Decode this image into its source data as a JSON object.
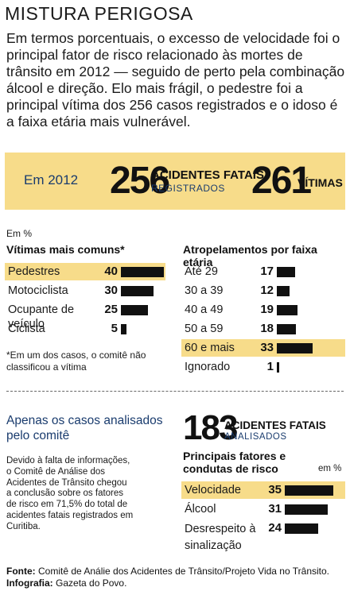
{
  "title": "MISTURA PERIGOSA",
  "intro": "Em termos porcentuais, o excesso de velocidade foi o principal fator de risco relacionado às mortes de trânsito em 2012 — seguido de perto pela combinação álcool e direção. Elo mais frágil, o pedestre foi a principal vítima dos 256 casos registrados e o idoso é a faixa etária mais vulnerável.",
  "highlight": {
    "year": "Em 2012",
    "fatal_count": "256",
    "fatal_label": "ACIDENTES FATAIS",
    "fatal_sub": "REGISTRADOS",
    "victims_count": "261",
    "victims_label": "VÍTIMAS",
    "background": "#f7dc8a"
  },
  "unit_note": "Em %",
  "note": "*Em um dos casos, o comitê não classificou a vítima",
  "analyzed": {
    "title": "Apenas os casos analisados pelo comitê",
    "body": "Devido à falta de informações, o Comitê de Análise dos Acidentes de Trânsito chegou a conclusão sobre os fatores de risco em 71,5% do total de acidentes fatais registrados em Curitiba.",
    "count": "183",
    "count_label": "ACIDENTES FATAIS",
    "count_sub": "ANALISADOS",
    "unit": "em %"
  },
  "footer": {
    "source_label": "Fonte:",
    "source": "Comitê de Análie dos Acidentes de Trânsito/Projeto Vida no Trânsito.",
    "credit_label": "Infografia:",
    "credit": "Gazeta do Povo."
  },
  "chart_data": [
    {
      "type": "bar",
      "title": "Vítimas mais comuns*",
      "categories": [
        "Pedestres",
        "Motociclista",
        "Ocupante de veículo",
        "Ciclista"
      ],
      "values": [
        40,
        30,
        25,
        5
      ],
      "highlight": [
        "Pedestres"
      ],
      "bar_color": "#111111",
      "highlight_color": "#f7dc8a"
    },
    {
      "type": "bar",
      "title": "Atropelamentos por faixa etária",
      "categories": [
        "Até 29",
        "30 a 39",
        "40 a 49",
        "50 a 59",
        "60 e mais",
        "Ignorado"
      ],
      "values": [
        17,
        12,
        19,
        18,
        33,
        1
      ],
      "highlight": [
        "60 e mais"
      ],
      "bar_color": "#111111",
      "highlight_color": "#f7dc8a"
    },
    {
      "type": "bar",
      "title": "Principais fatores e condutas de risco",
      "categories": [
        "Velocidade",
        "Álcool",
        "Desrespeito à sinalização"
      ],
      "values": [
        35,
        31,
        24
      ],
      "highlight": [
        "Velocidade"
      ],
      "bar_color": "#111111",
      "highlight_color": "#f7dc8a"
    }
  ]
}
